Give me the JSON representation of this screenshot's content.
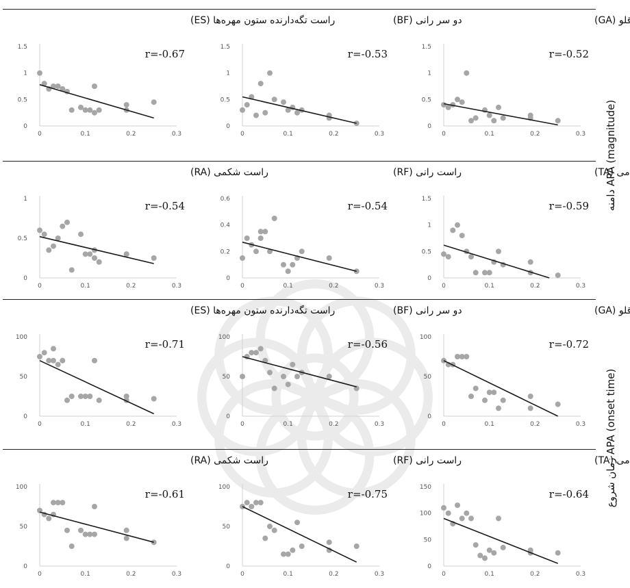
{
  "row_labels": {
    "magnitude": "دامنه APA (magnitude)",
    "onset": "زمان شروع APA (onset time)"
  },
  "colors": {
    "point": "#a6a6a6",
    "trend": "#1a1a1a",
    "axis": "#d0d0d0",
    "separator": "#222222"
  },
  "chart_data": [
    {
      "type": "scatter",
      "title": "راست تگه‌دارنده ستون مهره‌ها (ES)",
      "r_label": "r=-0.67",
      "xticks": [
        "0",
        "0.1",
        "0.2",
        "0.3"
      ],
      "yticks": [
        "0",
        "0.5",
        "1",
        "1.5"
      ],
      "xlim": [
        0,
        0.3
      ],
      "ylim": [
        0,
        1.5
      ],
      "x": [
        0.0,
        0.01,
        0.02,
        0.03,
        0.04,
        0.05,
        0.06,
        0.07,
        0.09,
        0.1,
        0.11,
        0.12,
        0.12,
        0.13,
        0.19,
        0.19,
        0.25
      ],
      "y": [
        1.0,
        0.8,
        0.7,
        0.75,
        0.75,
        0.7,
        0.65,
        0.3,
        0.35,
        0.3,
        0.3,
        0.75,
        0.25,
        0.3,
        0.3,
        0.4,
        0.45
      ],
      "trend": [
        [
          0,
          0.78
        ],
        [
          0.25,
          0.15
        ]
      ]
    },
    {
      "type": "scatter",
      "title": "دو سر رانی (BF)",
      "r_label": "r=-0.53",
      "xticks": [
        "0",
        "0.1",
        "0.2",
        "0.3"
      ],
      "yticks": [
        "0",
        "0.5",
        "1",
        "1.5"
      ],
      "xlim": [
        0,
        0.3
      ],
      "ylim": [
        0,
        1.5
      ],
      "x": [
        0.0,
        0.01,
        0.02,
        0.03,
        0.04,
        0.05,
        0.06,
        0.07,
        0.09,
        0.1,
        0.11,
        0.12,
        0.13,
        0.19,
        0.19,
        0.25
      ],
      "y": [
        0.3,
        0.4,
        0.55,
        0.2,
        0.8,
        0.25,
        1.0,
        0.5,
        0.45,
        0.3,
        0.35,
        0.25,
        0.3,
        0.2,
        0.15,
        0.05
      ],
      "trend": [
        [
          0,
          0.55
        ],
        [
          0.25,
          0.05
        ]
      ]
    },
    {
      "type": "scatter",
      "title": "دوقلو (GA)",
      "r_label": "r=-0.52",
      "xticks": [
        "0",
        "0.1",
        "0.2",
        "0.3"
      ],
      "yticks": [
        "0",
        "0.5",
        "1",
        "1.5"
      ],
      "xlim": [
        0,
        0.3
      ],
      "ylim": [
        0,
        1.5
      ],
      "x": [
        0.0,
        0.01,
        0.02,
        0.03,
        0.04,
        0.05,
        0.06,
        0.07,
        0.09,
        0.1,
        0.11,
        0.12,
        0.13,
        0.19,
        0.19,
        0.25
      ],
      "y": [
        0.4,
        0.35,
        0.4,
        0.5,
        0.45,
        1.0,
        0.1,
        0.15,
        0.3,
        0.2,
        0.1,
        0.35,
        0.15,
        0.15,
        0.2,
        0.1
      ],
      "trend": [
        [
          0,
          0.42
        ],
        [
          0.25,
          0.02
        ]
      ]
    },
    {
      "type": "scatter",
      "title": "راست شکمی (RA)",
      "r_label": "r=-0.54",
      "xticks": [
        "0",
        "0.1",
        "0.2",
        "0.3"
      ],
      "yticks": [
        "0",
        "0.5",
        "1"
      ],
      "xlim": [
        0,
        0.3
      ],
      "ylim": [
        0,
        1
      ],
      "x": [
        0.0,
        0.01,
        0.02,
        0.03,
        0.04,
        0.05,
        0.06,
        0.07,
        0.09,
        0.1,
        0.11,
        0.12,
        0.12,
        0.13,
        0.19,
        0.19,
        0.25
      ],
      "y": [
        0.6,
        0.55,
        0.35,
        0.4,
        0.5,
        0.65,
        0.7,
        0.1,
        0.55,
        0.3,
        0.3,
        0.35,
        0.25,
        0.2,
        0.3,
        0.3,
        0.25
      ],
      "trend": [
        [
          0,
          0.52
        ],
        [
          0.25,
          0.18
        ]
      ]
    },
    {
      "type": "scatter",
      "title": "راست رانی (RF)",
      "r_label": "r=-0.54",
      "xticks": [
        "0",
        "0.1",
        "0.2",
        "0.3"
      ],
      "yticks": [
        "0",
        "0.2",
        "0.4",
        "0.6"
      ],
      "xlim": [
        0,
        0.3
      ],
      "ylim": [
        0,
        0.6
      ],
      "x": [
        0.0,
        0.01,
        0.02,
        0.03,
        0.04,
        0.04,
        0.05,
        0.06,
        0.07,
        0.09,
        0.1,
        0.11,
        0.12,
        0.13,
        0.19,
        0.25
      ],
      "y": [
        0.15,
        0.3,
        0.25,
        0.2,
        0.35,
        0.3,
        0.35,
        0.2,
        0.45,
        0.1,
        0.05,
        0.1,
        0.15,
        0.2,
        0.15,
        0.05
      ],
      "trend": [
        [
          0,
          0.27
        ],
        [
          0.25,
          0.05
        ]
      ]
    },
    {
      "type": "scatter",
      "title": "ساقی قدامی (TA)",
      "r_label": "r=-0.59",
      "xticks": [
        "0",
        "0.1",
        "0.2",
        "0.3"
      ],
      "yticks": [
        "0",
        "0.5",
        "1",
        "1.5"
      ],
      "xlim": [
        0,
        0.3
      ],
      "ylim": [
        0,
        1.5
      ],
      "x": [
        0.0,
        0.01,
        0.02,
        0.03,
        0.04,
        0.05,
        0.06,
        0.07,
        0.09,
        0.1,
        0.11,
        0.12,
        0.13,
        0.19,
        0.19,
        0.25
      ],
      "y": [
        0.45,
        0.4,
        0.9,
        1.0,
        0.8,
        0.5,
        0.4,
        0.1,
        0.1,
        0.1,
        0.3,
        0.5,
        0.25,
        0.1,
        0.3,
        0.05
      ],
      "trend": [
        [
          0,
          0.62
        ],
        [
          0.25,
          -0.05
        ]
      ]
    },
    {
      "type": "scatter",
      "title": "راست تگه‌دارنده ستون مهره‌ها (ES)",
      "r_label": "r=-0.71",
      "xticks": [
        "0",
        "0.1",
        "0.2",
        "0.3"
      ],
      "yticks": [
        "0",
        "50",
        "100"
      ],
      "xlim": [
        0,
        0.3
      ],
      "ylim": [
        0,
        100
      ],
      "x": [
        0.0,
        0.01,
        0.02,
        0.03,
        0.03,
        0.04,
        0.05,
        0.06,
        0.07,
        0.09,
        0.1,
        0.11,
        0.12,
        0.13,
        0.19,
        0.19,
        0.25
      ],
      "y": [
        75,
        80,
        70,
        85,
        70,
        65,
        70,
        20,
        25,
        25,
        25,
        25,
        70,
        20,
        20,
        25,
        22
      ],
      "trend": [
        [
          0,
          70
        ],
        [
          0.25,
          3
        ]
      ]
    },
    {
      "type": "scatter",
      "title": "دو سر رانی (BF)",
      "r_label": "r=-0.56",
      "xticks": [
        "0",
        "0.1",
        "0.2",
        "0.3"
      ],
      "yticks": [
        "0",
        "50",
        "100"
      ],
      "xlim": [
        0,
        0.3
      ],
      "ylim": [
        0,
        100
      ],
      "x": [
        0.0,
        0.01,
        0.02,
        0.03,
        0.04,
        0.05,
        0.06,
        0.07,
        0.09,
        0.1,
        0.11,
        0.12,
        0.13,
        0.19,
        0.25
      ],
      "y": [
        50,
        75,
        80,
        80,
        85,
        70,
        55,
        35,
        50,
        40,
        65,
        50,
        55,
        50,
        35
      ],
      "trend": [
        [
          0,
          75
        ],
        [
          0.25,
          37
        ]
      ]
    },
    {
      "type": "scatter",
      "title": "دوقلو (GA)",
      "r_label": "r=-0.72",
      "xticks": [
        "0",
        "0.1",
        "0.2",
        "0.3"
      ],
      "yticks": [
        "0",
        "50",
        "100"
      ],
      "xlim": [
        0,
        0.3
      ],
      "ylim": [
        0,
        100
      ],
      "x": [
        0.0,
        0.01,
        0.02,
        0.03,
        0.04,
        0.05,
        0.06,
        0.07,
        0.09,
        0.1,
        0.11,
        0.12,
        0.13,
        0.19,
        0.19,
        0.25
      ],
      "y": [
        70,
        65,
        65,
        75,
        75,
        75,
        25,
        35,
        20,
        30,
        30,
        10,
        20,
        25,
        10,
        15
      ],
      "trend": [
        [
          0,
          70
        ],
        [
          0.25,
          0
        ]
      ]
    },
    {
      "type": "scatter",
      "title": "راست شکمی (RA)",
      "r_label": "r=-0.61",
      "xticks": [
        "0",
        "0.1",
        "0.2",
        "0.3"
      ],
      "yticks": [
        "0",
        "50",
        "100"
      ],
      "xlim": [
        0,
        0.3
      ],
      "ylim": [
        0,
        100
      ],
      "x": [
        0.0,
        0.01,
        0.02,
        0.03,
        0.03,
        0.04,
        0.05,
        0.06,
        0.07,
        0.09,
        0.1,
        0.11,
        0.12,
        0.12,
        0.19,
        0.19,
        0.25
      ],
      "y": [
        70,
        65,
        60,
        80,
        65,
        80,
        80,
        45,
        25,
        45,
        40,
        40,
        75,
        40,
        45,
        35,
        30
      ],
      "trend": [
        [
          0,
          68
        ],
        [
          0.25,
          30
        ]
      ]
    },
    {
      "type": "scatter",
      "title": "راست رانی (RF)",
      "r_label": "r=-0.75",
      "xticks": [
        "0",
        "0.1",
        "0.2",
        "0.3"
      ],
      "yticks": [
        "0",
        "50",
        "100"
      ],
      "xlim": [
        0,
        0.3
      ],
      "ylim": [
        0,
        100
      ],
      "x": [
        0.0,
        0.01,
        0.02,
        0.03,
        0.04,
        0.05,
        0.06,
        0.07,
        0.09,
        0.1,
        0.11,
        0.12,
        0.13,
        0.19,
        0.19,
        0.25
      ],
      "y": [
        75,
        80,
        75,
        80,
        80,
        35,
        50,
        45,
        15,
        15,
        20,
        55,
        25,
        30,
        20,
        25
      ],
      "trend": [
        [
          0,
          75
        ],
        [
          0.25,
          5
        ]
      ]
    },
    {
      "type": "scatter",
      "title": "ساقی قدامی (TA)",
      "r_label": "r=-0.64",
      "xticks": [
        "0",
        "0.1",
        "0.2",
        "0.3"
      ],
      "yticks": [
        "0",
        "50",
        "100",
        "150"
      ],
      "xlim": [
        0,
        0.3
      ],
      "ylim": [
        0,
        150
      ],
      "x": [
        0.0,
        0.01,
        0.02,
        0.03,
        0.04,
        0.05,
        0.06,
        0.07,
        0.08,
        0.09,
        0.1,
        0.11,
        0.12,
        0.13,
        0.19,
        0.19,
        0.25
      ],
      "y": [
        110,
        100,
        80,
        115,
        90,
        100,
        90,
        40,
        20,
        15,
        30,
        25,
        90,
        35,
        30,
        25,
        25
      ],
      "trend": [
        [
          0,
          90
        ],
        [
          0.25,
          5
        ]
      ]
    }
  ]
}
